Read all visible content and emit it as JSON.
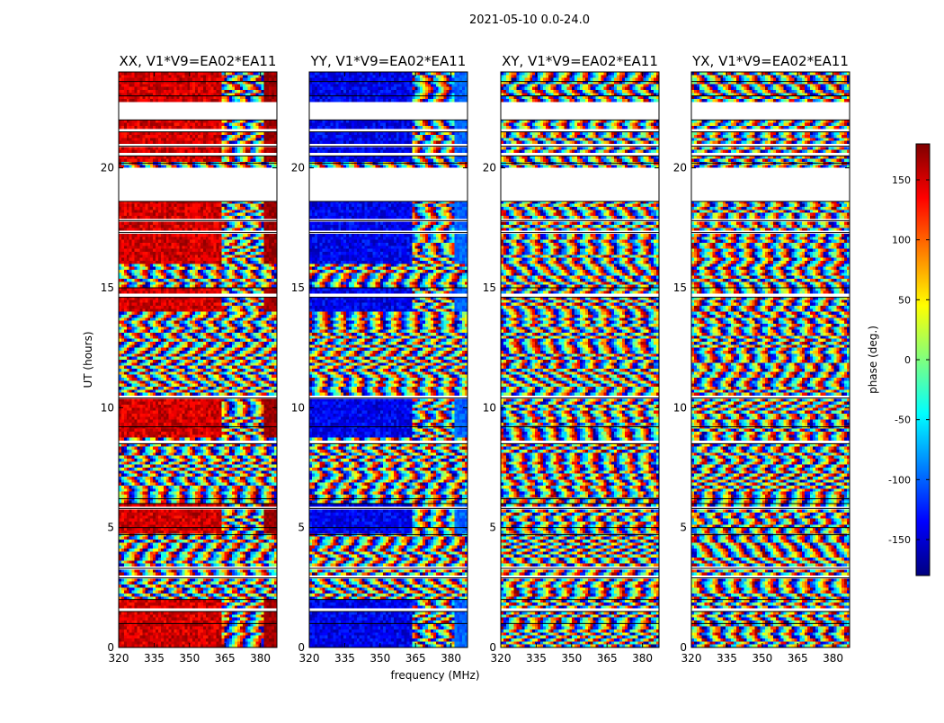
{
  "figure": {
    "title": "2021-05-10 0.0-24.0",
    "xlabel": "frequency (MHz)",
    "ylabel": "UT (hours)",
    "colorbar_label": "phase (deg.)"
  },
  "chart_data": {
    "type": "heatmap",
    "title": "2021-05-10 0.0-24.0",
    "xlabel": "frequency (MHz)",
    "ylabel": "UT (hours)",
    "xlim": [
      320,
      387
    ],
    "ylim": [
      0,
      24
    ],
    "xticks": [
      320,
      335,
      350,
      365,
      380
    ],
    "yticks": [
      0,
      5,
      10,
      15,
      20
    ],
    "colorbar": {
      "label": "phase (deg.)",
      "range": [
        -180,
        180
      ],
      "ticks": [
        -150,
        -100,
        -50,
        0,
        50,
        100,
        150
      ],
      "colormap": "jet",
      "colors": [
        "#00007f",
        "#0000ff",
        "#007fff",
        "#00ffff",
        "#7fff7f",
        "#ffff00",
        "#ff7f00",
        "#ff0000",
        "#7f0000"
      ]
    },
    "panels": [
      {
        "title": "XX, V1*V9=EA02*EA11",
        "pol": "XX",
        "coherent_phase": 150,
        "late_phase": 170,
        "mid_phase": -150
      },
      {
        "title": "YY, V1*V9=EA02*EA11",
        "pol": "YY",
        "coherent_phase": -140,
        "late_phase": -100,
        "mid_phase": -120
      },
      {
        "title": "XY, V1*V9=EA02*EA11",
        "pol": "XY",
        "coherent_phase": null,
        "late_phase": null,
        "mid_phase": null
      },
      {
        "title": "YX, V1*V9=EA02*EA11",
        "pol": "YX",
        "coherent_phase": null,
        "late_phase": null,
        "mid_phase": null
      }
    ],
    "flagged_ut_hours": [
      [
        1.0,
        1.05
      ],
      [
        1.5,
        1.6
      ],
      [
        2.0,
        2.05
      ],
      [
        2.9,
        3.0
      ],
      [
        3.3,
        3.35
      ],
      [
        4.7,
        4.8
      ],
      [
        5.0,
        5.05
      ],
      [
        5.8,
        5.9
      ],
      [
        6.0,
        6.05
      ],
      [
        6.2,
        6.25
      ],
      [
        8.5,
        8.6
      ],
      [
        9.2,
        9.25
      ],
      [
        10.4,
        10.5
      ],
      [
        14.6,
        14.7
      ],
      [
        15.0,
        15.05
      ],
      [
        17.3,
        17.35
      ],
      [
        17.8,
        17.9
      ],
      [
        18.6,
        20.0
      ],
      [
        20.2,
        20.3
      ],
      [
        20.5,
        20.6
      ],
      [
        20.9,
        21.0
      ],
      [
        21.5,
        21.6
      ],
      [
        22.0,
        22.8
      ],
      [
        23.0,
        23.05
      ],
      [
        23.6,
        23.65
      ]
    ],
    "coherent_ut_hours": [
      [
        0,
        2.0
      ],
      [
        4.8,
        6.0
      ],
      [
        8.8,
        10.5
      ],
      [
        14.0,
        15.0
      ],
      [
        16.0,
        18.6
      ],
      [
        20.3,
        24.0
      ]
    ],
    "band_edge_mhz": 363
  }
}
